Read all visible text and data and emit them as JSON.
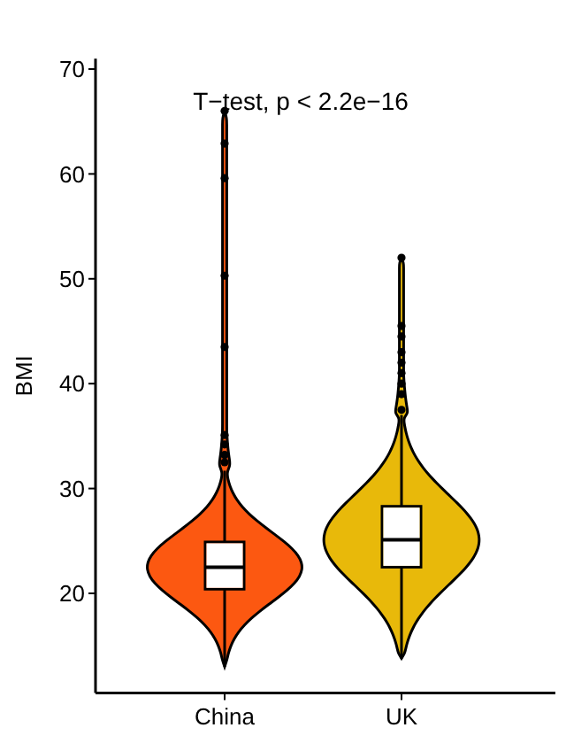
{
  "chart_data": {
    "type": "box",
    "ylabel": "BMI",
    "categories": [
      "China",
      "UK"
    ],
    "colors": [
      "#fc5811",
      "#e8b90a"
    ],
    "ylim": [
      10.5,
      71
    ],
    "yticks": [
      20,
      30,
      40,
      50,
      60,
      70
    ],
    "boxes": [
      {
        "low": 13,
        "q1": 20.4,
        "median": 22.5,
        "q3": 24.9,
        "high": 31.7,
        "outliers": [
          32.5,
          33.2,
          34.2,
          35.1,
          43.5,
          50.3,
          59.6,
          62.9,
          66
        ]
      },
      {
        "low": 13.8,
        "q1": 22.5,
        "median": 25.1,
        "q3": 28.3,
        "high": 37,
        "outliers": [
          37.5,
          39,
          40,
          41,
          42,
          43,
          44.5,
          45.5,
          52
        ]
      }
    ],
    "annotations": [
      "T−test, p < 2.2e−16"
    ],
    "legend": false,
    "grid": false
  }
}
